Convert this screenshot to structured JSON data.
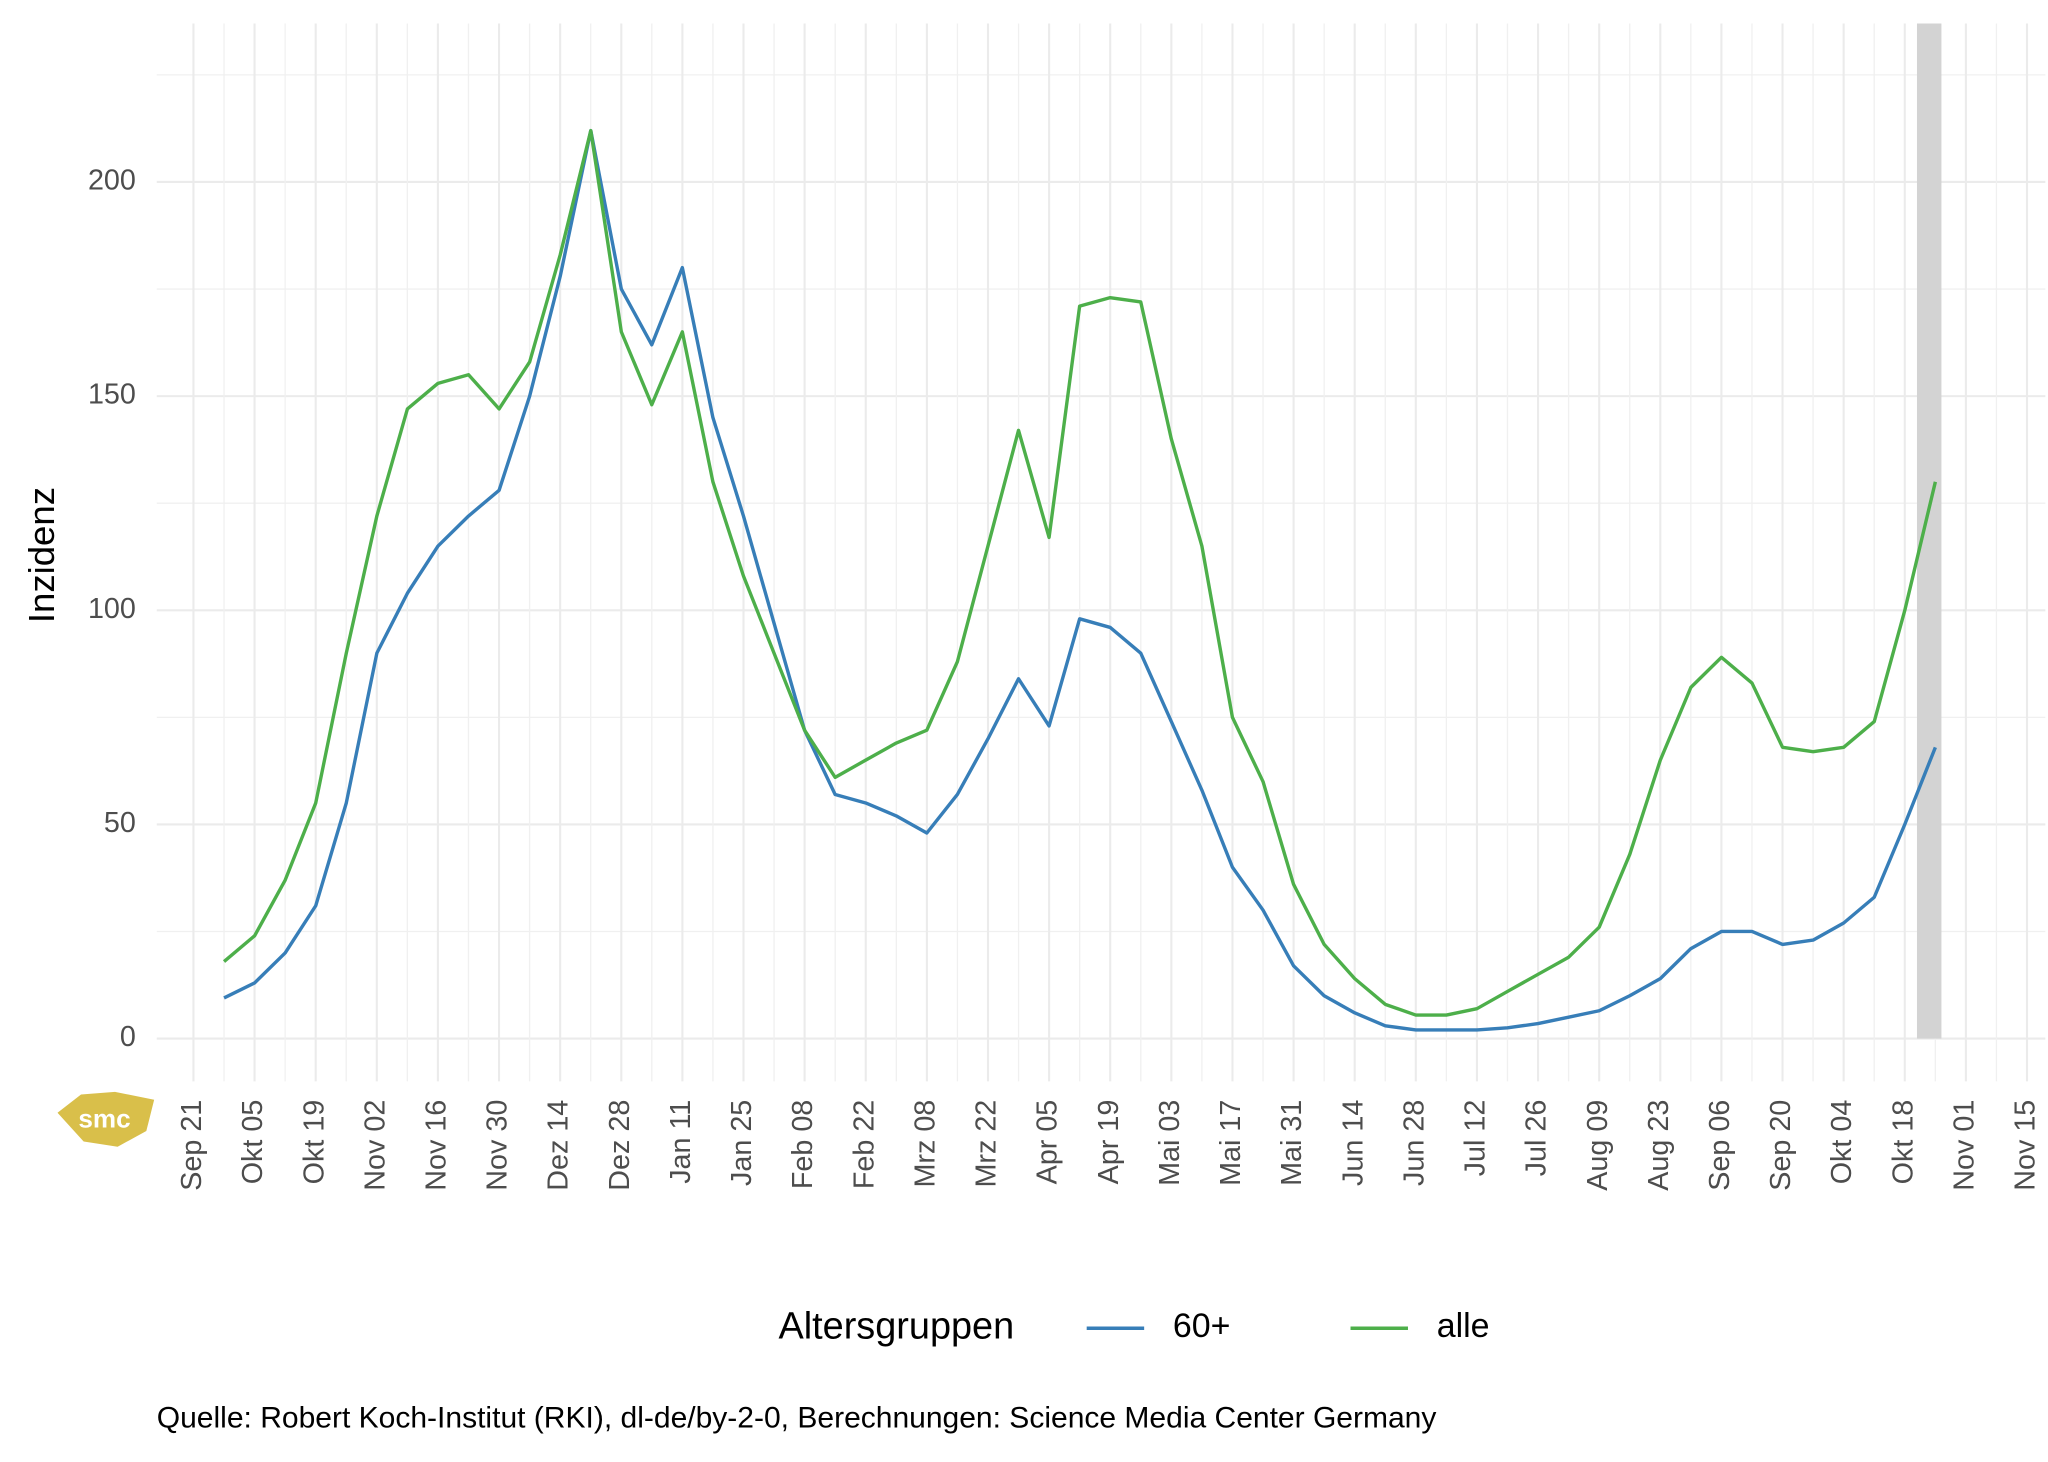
{
  "chart_data": {
    "type": "line",
    "y_label": "Inzidenz",
    "legend_title": "Altersgruppen",
    "caption": "Quelle: Robert Koch-Institut (RKI), dl-de/by-2-0, Berechnungen: Science Media Center Germany",
    "logo": "smc",
    "legend_position": "bottom",
    "grid": true,
    "categories": [
      "Sep 21",
      null,
      "Okt 05",
      null,
      "Okt 19",
      null,
      "Nov 02",
      null,
      "Nov 16",
      null,
      "Nov 30",
      null,
      "Dez 14",
      null,
      "Dez 28",
      null,
      "Jan 11",
      null,
      "Jan 25",
      null,
      "Feb 08",
      null,
      "Feb 22",
      null,
      "Mrz 08",
      null,
      "Mrz 22",
      null,
      "Apr 05",
      null,
      "Apr 19",
      null,
      "Mai 03",
      null,
      "Mai 17",
      null,
      "Mai 31",
      null,
      "Jun 14",
      null,
      "Jun 28",
      null,
      "Jul 12",
      null,
      "Jul 26",
      null,
      "Aug 09",
      null,
      "Aug 23",
      null,
      "Sep 06",
      null,
      "Sep 20",
      null,
      "Okt 04",
      null,
      "Okt 18",
      null,
      "Nov 01",
      null,
      "Nov 15"
    ],
    "series": [
      {
        "name": "60+",
        "color": "#377eb8",
        "values": [
          null,
          9.5,
          13,
          20,
          31,
          55,
          90,
          104,
          115,
          122,
          128,
          150,
          178,
          212,
          175,
          162,
          180,
          145,
          122,
          97,
          72,
          57,
          55,
          52,
          48,
          57,
          70,
          84,
          73,
          98,
          96,
          90,
          74,
          58,
          40,
          30,
          17,
          10,
          6,
          3,
          2,
          2,
          2,
          2.5,
          3.5,
          5,
          6.5,
          10,
          14,
          21,
          25,
          25,
          22,
          23,
          27,
          33,
          50,
          68,
          null,
          null,
          null
        ]
      },
      {
        "name": "alle",
        "color": "#4daf4a",
        "values": [
          null,
          18,
          24,
          37,
          55,
          90,
          122,
          147,
          153,
          155,
          147,
          158,
          183,
          212,
          165,
          148,
          165,
          130,
          108,
          90,
          72,
          61,
          65,
          69,
          72,
          88,
          115,
          142,
          117,
          171,
          173,
          172,
          140,
          115,
          75,
          60,
          36,
          22,
          14,
          8,
          5.5,
          5.5,
          7,
          11,
          15,
          19,
          26,
          43,
          65,
          82,
          89,
          83,
          68,
          67,
          68,
          74,
          100,
          130,
          null,
          null,
          null
        ]
      }
    ],
    "shaded_region": {
      "from": 56.4,
      "to": 57.2,
      "color": "#d3d3d3"
    },
    "xlim": [
      -1.2,
      60.6
    ],
    "ylim": [
      -10,
      237
    ],
    "yticks": [
      0,
      50,
      100,
      150,
      200
    ]
  }
}
